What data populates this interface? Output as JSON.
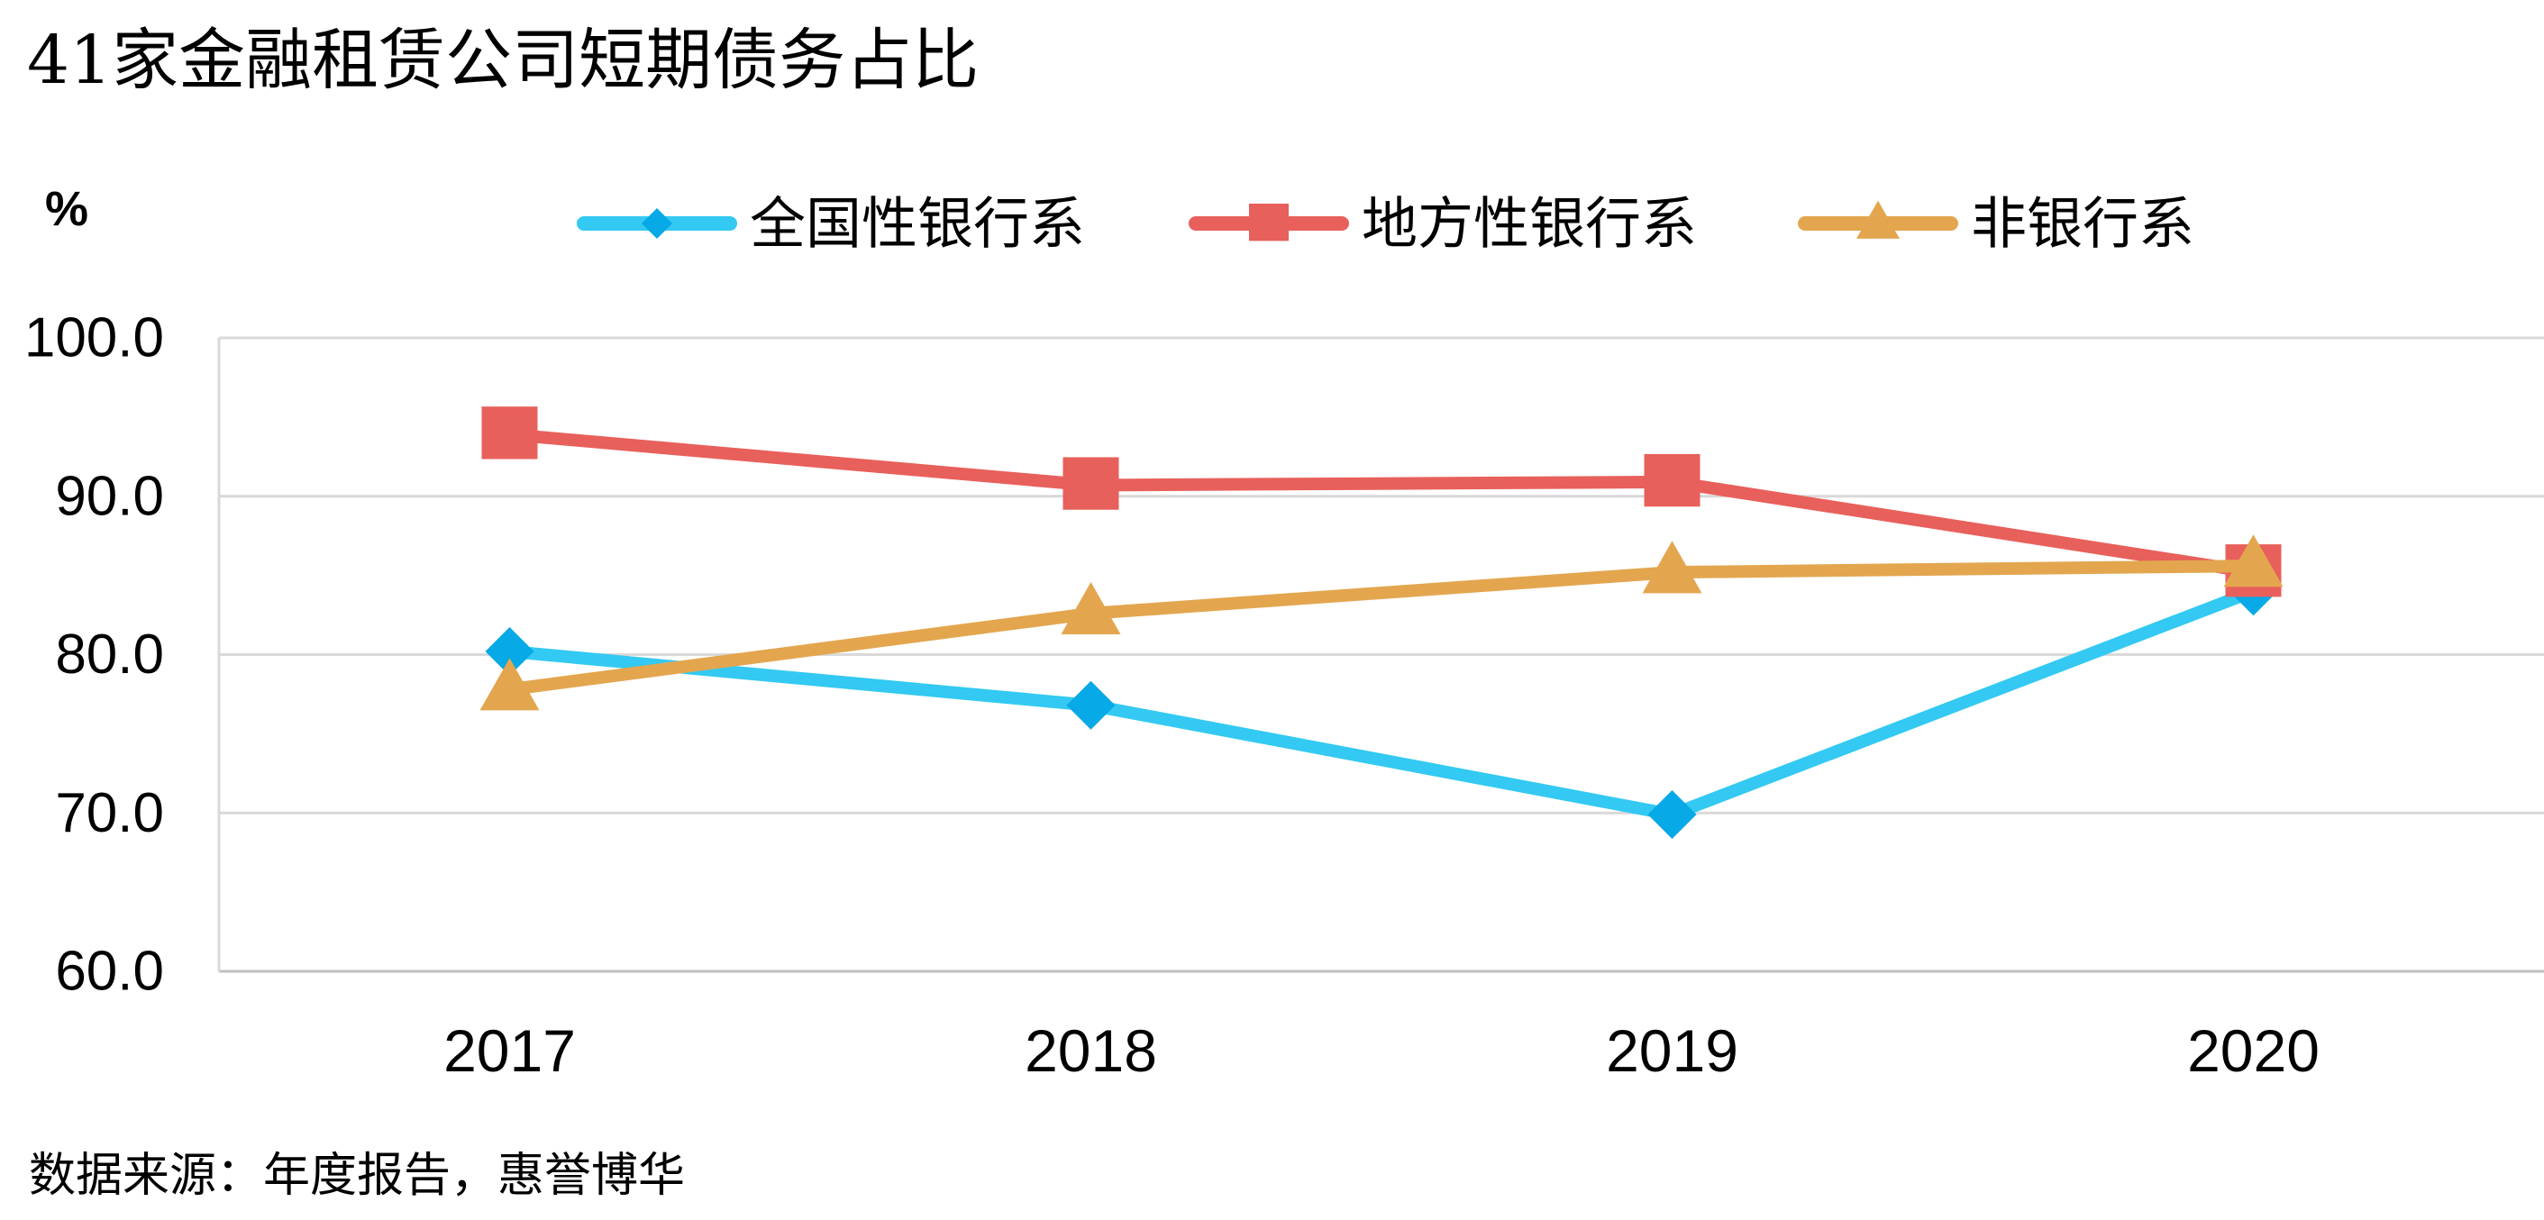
{
  "chart_data": {
    "type": "line",
    "title": "41家金融租赁公司短期债务占比",
    "ylabel": "%",
    "xlabel": "",
    "categories": [
      "2017",
      "2018",
      "2019",
      "2020"
    ],
    "ylim": [
      60,
      100
    ],
    "yticks": [
      "60.0",
      "70.0",
      "80.0",
      "90.0",
      "100.0"
    ],
    "grid": true,
    "legend": "top",
    "series": [
      {
        "name": "全国性银行系",
        "values": [
          80.2,
          76.8,
          69.9,
          84.0
        ],
        "color": "#33C9F2",
        "marker": "diamond",
        "marker_color": "#07A9E6"
      },
      {
        "name": "地方性银行系",
        "values": [
          93.9,
          90.7,
          90.9,
          85.2
        ],
        "color": "#E8605B",
        "marker": "square",
        "marker_color": "#E8605B"
      },
      {
        "name": "非银行系",
        "values": [
          77.8,
          82.6,
          85.2,
          85.6
        ],
        "color": "#E3A64F",
        "marker": "triangle",
        "marker_color": "#E3A64F"
      }
    ]
  },
  "source": "数据来源：年度报告，惠誉博华"
}
